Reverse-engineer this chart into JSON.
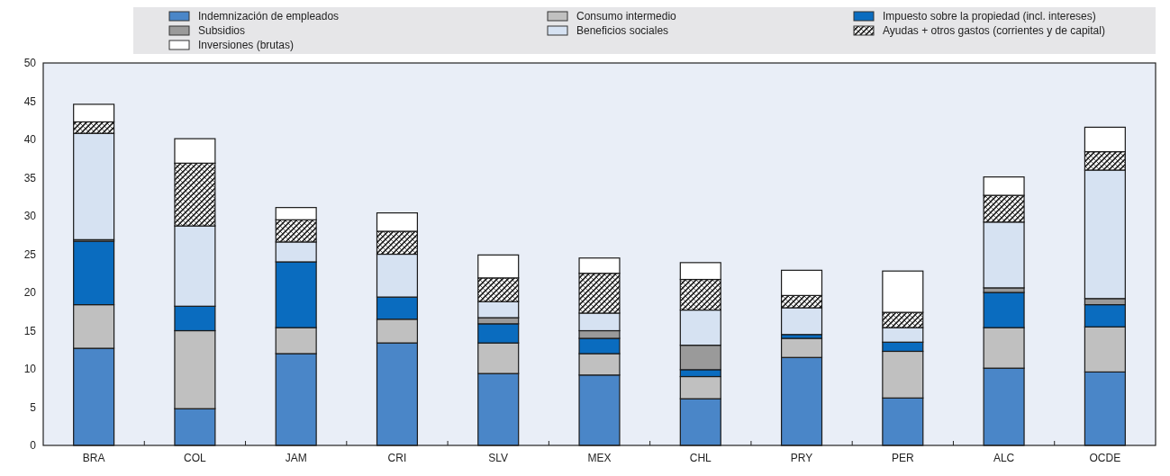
{
  "chart_data": {
    "type": "bar",
    "stacked": true,
    "legend": "top",
    "categories": [
      "BRA",
      "COL",
      "JAM",
      "CRI",
      "SLV",
      "MEX",
      "CHL",
      "PRY",
      "PER",
      "ALC",
      "OCDE"
    ],
    "ylim": [
      0,
      50
    ],
    "yticks": [
      0,
      5,
      10,
      15,
      20,
      25,
      30,
      35,
      40,
      45,
      50
    ],
    "series": [
      {
        "name": "Indemnización de empleados",
        "color": "#4a86c8",
        "values": [
          12.7,
          4.8,
          12.0,
          13.4,
          9.4,
          9.2,
          6.1,
          11.5,
          6.2,
          10.1,
          9.6
        ]
      },
      {
        "name": "Consumo intermedio",
        "color": "#c0c0c0",
        "values": [
          5.7,
          10.2,
          3.4,
          3.1,
          4.0,
          2.8,
          2.9,
          2.5,
          6.1,
          5.3,
          5.9
        ]
      },
      {
        "name": "Impuesto sobre la propiedad (incl. intereses)",
        "color": "#0a6cbf",
        "values": [
          8.3,
          3.2,
          8.6,
          2.9,
          2.5,
          2.0,
          0.9,
          0.5,
          1.2,
          4.6,
          2.9
        ]
      },
      {
        "name": "Subsidios",
        "color": "#9a9a9a",
        "values": [
          0.2,
          0,
          0,
          0,
          0.8,
          1.0,
          3.2,
          0,
          0,
          0.6,
          0.8
        ]
      },
      {
        "name": "Beneficios sociales",
        "color": "#d6e2f2",
        "values": [
          13.9,
          10.5,
          2.6,
          5.6,
          2.1,
          2.3,
          4.6,
          3.5,
          1.9,
          8.6,
          16.8
        ]
      },
      {
        "name": "Ayudas + otros gastos (corrientes y de capital)",
        "color": "#222222",
        "values": [
          1.5,
          8.2,
          2.9,
          3.0,
          3.1,
          5.2,
          4.0,
          1.6,
          2.0,
          3.5,
          2.4
        ]
      },
      {
        "name": "Inversiones (brutas)",
        "color": "#ffffff",
        "values": [
          2.3,
          3.2,
          1.6,
          2.4,
          3.0,
          2.0,
          2.2,
          3.3,
          5.4,
          2.4,
          3.2
        ]
      }
    ]
  }
}
